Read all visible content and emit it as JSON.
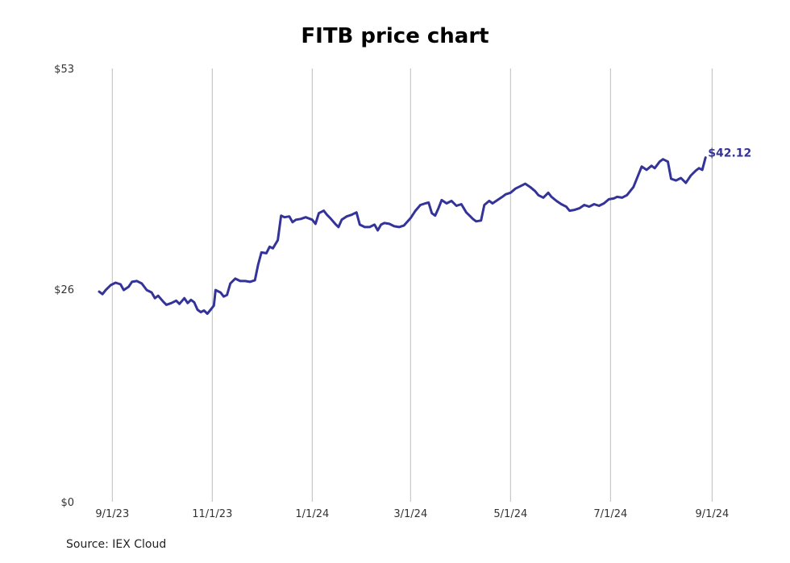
{
  "chart_data": {
    "type": "line",
    "title": "FITB price chart",
    "source": "Source: IEX Cloud",
    "y_ticks": [
      {
        "value": 0,
        "label": "$0"
      },
      {
        "value": 26,
        "label": "$26"
      },
      {
        "value": 53,
        "label": "$53"
      }
    ],
    "x_ticks": [
      {
        "date": "2023-09-01",
        "label": "9/1/23"
      },
      {
        "date": "2023-11-01",
        "label": "11/1/23"
      },
      {
        "date": "2024-01-01",
        "label": "1/1/24"
      },
      {
        "date": "2024-03-01",
        "label": "3/1/24"
      },
      {
        "date": "2024-05-01",
        "label": "5/1/24"
      },
      {
        "date": "2024-07-01",
        "label": "7/1/24"
      },
      {
        "date": "2024-09-01",
        "label": "9/1/24"
      }
    ],
    "xlim": [
      "2023-08-23",
      "2024-09-20"
    ],
    "ylim": [
      0,
      53
    ],
    "grid": "vertical",
    "line_color": "#33339a",
    "last_value_label": "$42.12",
    "series": [
      {
        "points": [
          [
            "2023-08-24",
            25.7
          ],
          [
            "2023-08-26",
            25.4
          ],
          [
            "2023-08-28",
            25.9
          ],
          [
            "2023-08-31",
            26.5
          ],
          [
            "2023-09-03",
            26.8
          ],
          [
            "2023-09-06",
            26.6
          ],
          [
            "2023-09-08",
            25.9
          ],
          [
            "2023-09-11",
            26.3
          ],
          [
            "2023-09-13",
            26.9
          ],
          [
            "2023-09-16",
            27.0
          ],
          [
            "2023-09-19",
            26.7
          ],
          [
            "2023-09-22",
            25.9
          ],
          [
            "2023-09-25",
            25.6
          ],
          [
            "2023-09-27",
            24.9
          ],
          [
            "2023-09-29",
            25.2
          ],
          [
            "2023-10-02",
            24.5
          ],
          [
            "2023-10-04",
            24.1
          ],
          [
            "2023-10-07",
            24.3
          ],
          [
            "2023-10-10",
            24.6
          ],
          [
            "2023-10-12",
            24.2
          ],
          [
            "2023-10-15",
            24.9
          ],
          [
            "2023-10-17",
            24.3
          ],
          [
            "2023-10-19",
            24.7
          ],
          [
            "2023-10-21",
            24.4
          ],
          [
            "2023-10-23",
            23.5
          ],
          [
            "2023-10-25",
            23.2
          ],
          [
            "2023-10-27",
            23.4
          ],
          [
            "2023-10-29",
            23.0
          ],
          [
            "2023-10-31",
            23.5
          ],
          [
            "2023-11-02",
            24.0
          ],
          [
            "2023-11-03",
            25.9
          ],
          [
            "2023-11-06",
            25.6
          ],
          [
            "2023-11-08",
            25.1
          ],
          [
            "2023-11-10",
            25.3
          ],
          [
            "2023-11-12",
            26.7
          ],
          [
            "2023-11-15",
            27.3
          ],
          [
            "2023-11-18",
            27.0
          ],
          [
            "2023-11-21",
            27.0
          ],
          [
            "2023-11-24",
            26.9
          ],
          [
            "2023-11-27",
            27.1
          ],
          [
            "2023-11-29",
            29.0
          ],
          [
            "2023-12-01",
            30.5
          ],
          [
            "2023-12-04",
            30.4
          ],
          [
            "2023-12-06",
            31.2
          ],
          [
            "2023-12-08",
            31.0
          ],
          [
            "2023-12-11",
            32.0
          ],
          [
            "2023-12-13",
            35.0
          ],
          [
            "2023-12-15",
            34.8
          ],
          [
            "2023-12-18",
            34.9
          ],
          [
            "2023-12-20",
            34.2
          ],
          [
            "2023-12-22",
            34.5
          ],
          [
            "2023-12-25",
            34.6
          ],
          [
            "2023-12-28",
            34.8
          ],
          [
            "2024-01-01",
            34.5
          ],
          [
            "2024-01-03",
            34.0
          ],
          [
            "2024-01-05",
            35.3
          ],
          [
            "2024-01-08",
            35.6
          ],
          [
            "2024-01-10",
            35.1
          ],
          [
            "2024-01-12",
            34.7
          ],
          [
            "2024-01-15",
            34.0
          ],
          [
            "2024-01-17",
            33.6
          ],
          [
            "2024-01-19",
            34.5
          ],
          [
            "2024-01-22",
            34.9
          ],
          [
            "2024-01-25",
            35.1
          ],
          [
            "2024-01-28",
            35.4
          ],
          [
            "2024-01-30",
            33.9
          ],
          [
            "2024-02-02",
            33.6
          ],
          [
            "2024-02-05",
            33.6
          ],
          [
            "2024-02-08",
            33.9
          ],
          [
            "2024-02-10",
            33.2
          ],
          [
            "2024-02-12",
            33.9
          ],
          [
            "2024-02-14",
            34.1
          ],
          [
            "2024-02-17",
            34.0
          ],
          [
            "2024-02-20",
            33.7
          ],
          [
            "2024-02-23",
            33.6
          ],
          [
            "2024-02-26",
            33.8
          ],
          [
            "2024-03-01",
            34.7
          ],
          [
            "2024-03-04",
            35.6
          ],
          [
            "2024-03-07",
            36.3
          ],
          [
            "2024-03-10",
            36.5
          ],
          [
            "2024-03-12",
            36.6
          ],
          [
            "2024-03-14",
            35.3
          ],
          [
            "2024-03-16",
            35.0
          ],
          [
            "2024-03-18",
            35.9
          ],
          [
            "2024-03-20",
            36.9
          ],
          [
            "2024-03-23",
            36.5
          ],
          [
            "2024-03-26",
            36.8
          ],
          [
            "2024-03-29",
            36.2
          ],
          [
            "2024-04-01",
            36.4
          ],
          [
            "2024-04-04",
            35.4
          ],
          [
            "2024-04-06",
            35.0
          ],
          [
            "2024-04-08",
            34.6
          ],
          [
            "2024-04-10",
            34.3
          ],
          [
            "2024-04-13",
            34.4
          ],
          [
            "2024-04-15",
            36.3
          ],
          [
            "2024-04-18",
            36.8
          ],
          [
            "2024-04-20",
            36.5
          ],
          [
            "2024-04-23",
            36.9
          ],
          [
            "2024-04-26",
            37.3
          ],
          [
            "2024-04-28",
            37.6
          ],
          [
            "2024-05-01",
            37.8
          ],
          [
            "2024-05-04",
            38.3
          ],
          [
            "2024-05-07",
            38.6
          ],
          [
            "2024-05-10",
            38.9
          ],
          [
            "2024-05-13",
            38.5
          ],
          [
            "2024-05-16",
            38.0
          ],
          [
            "2024-05-18",
            37.5
          ],
          [
            "2024-05-21",
            37.2
          ],
          [
            "2024-05-24",
            37.8
          ],
          [
            "2024-05-26",
            37.3
          ],
          [
            "2024-05-29",
            36.8
          ],
          [
            "2024-06-01",
            36.4
          ],
          [
            "2024-06-04",
            36.1
          ],
          [
            "2024-06-06",
            35.6
          ],
          [
            "2024-06-09",
            35.7
          ],
          [
            "2024-06-12",
            35.9
          ],
          [
            "2024-06-15",
            36.3
          ],
          [
            "2024-06-18",
            36.1
          ],
          [
            "2024-06-21",
            36.4
          ],
          [
            "2024-06-24",
            36.2
          ],
          [
            "2024-06-27",
            36.5
          ],
          [
            "2024-06-30",
            37.0
          ],
          [
            "2024-07-03",
            37.1
          ],
          [
            "2024-07-05",
            37.3
          ],
          [
            "2024-07-08",
            37.2
          ],
          [
            "2024-07-11",
            37.5
          ],
          [
            "2024-07-15",
            38.5
          ],
          [
            "2024-07-17",
            39.5
          ],
          [
            "2024-07-20",
            41.0
          ],
          [
            "2024-07-23",
            40.6
          ],
          [
            "2024-07-26",
            41.1
          ],
          [
            "2024-07-28",
            40.8
          ],
          [
            "2024-07-31",
            41.6
          ],
          [
            "2024-08-02",
            41.9
          ],
          [
            "2024-08-05",
            41.6
          ],
          [
            "2024-08-07",
            39.5
          ],
          [
            "2024-08-10",
            39.3
          ],
          [
            "2024-08-13",
            39.6
          ],
          [
            "2024-08-16",
            39.0
          ],
          [
            "2024-08-19",
            39.9
          ],
          [
            "2024-08-22",
            40.5
          ],
          [
            "2024-08-24",
            40.8
          ],
          [
            "2024-08-26",
            40.6
          ],
          [
            "2024-08-28",
            42.1
          ]
        ]
      }
    ]
  }
}
